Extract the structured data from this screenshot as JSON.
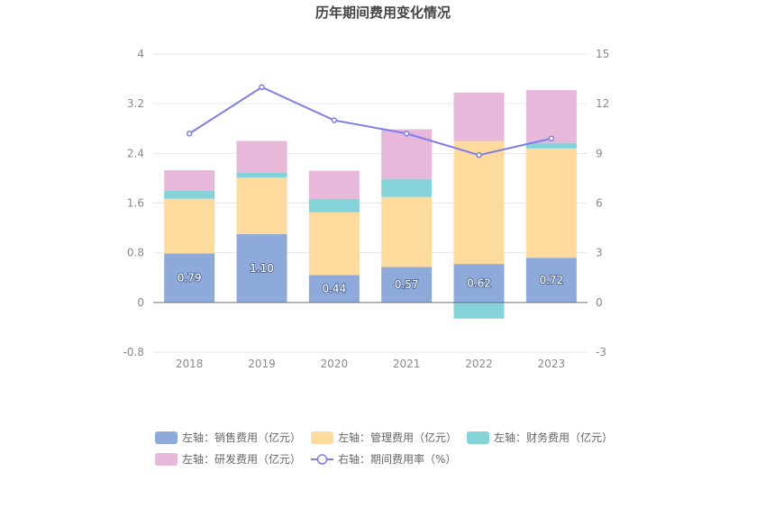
{
  "chart_data": {
    "type": "bar",
    "title": "历年期间费用变化情况",
    "categories": [
      "2018",
      "2019",
      "2020",
      "2021",
      "2022",
      "2023"
    ],
    "left_axis": {
      "min": -0.8,
      "max": 4,
      "ticks": [
        "-0.8",
        "0",
        "0.8",
        "1.6",
        "2.4",
        "3.2",
        "4"
      ]
    },
    "right_axis": {
      "min": -3,
      "max": 15,
      "ticks": [
        "-3",
        "0",
        "3",
        "6",
        "9",
        "12",
        "15"
      ]
    },
    "stacked": true,
    "series": [
      {
        "name": "左轴：销售费用（亿元）",
        "axis": "left",
        "kind": "bar",
        "color": "#8eaadb",
        "values": [
          0.79,
          1.1,
          0.44,
          0.57,
          0.62,
          0.72
        ],
        "labels": [
          "0.79",
          "1.10",
          "0.44",
          "0.57",
          "0.62",
          "0.72"
        ]
      },
      {
        "name": "左轴：管理费用（亿元）",
        "axis": "left",
        "kind": "bar",
        "color": "#fedb9c",
        "values": [
          0.88,
          0.91,
          1.01,
          1.13,
          1.98,
          1.76
        ]
      },
      {
        "name": "左轴：财务费用（亿元）",
        "axis": "left",
        "kind": "bar",
        "color": "#84d3d9",
        "values": [
          0.13,
          0.08,
          0.22,
          0.29,
          -0.26,
          0.09
        ]
      },
      {
        "name": "左轴：研发费用（亿元）",
        "axis": "left",
        "kind": "bar",
        "color": "#e8b8da",
        "values": [
          0.33,
          0.51,
          0.45,
          0.8,
          0.78,
          0.85
        ]
      },
      {
        "name": "右轴：期间费用率（%）",
        "axis": "right",
        "kind": "line",
        "color": "#7e7eea",
        "values": [
          10.2,
          13.0,
          11.0,
          10.2,
          8.9,
          9.9
        ]
      }
    ],
    "grid": true,
    "legend": "bottom"
  }
}
